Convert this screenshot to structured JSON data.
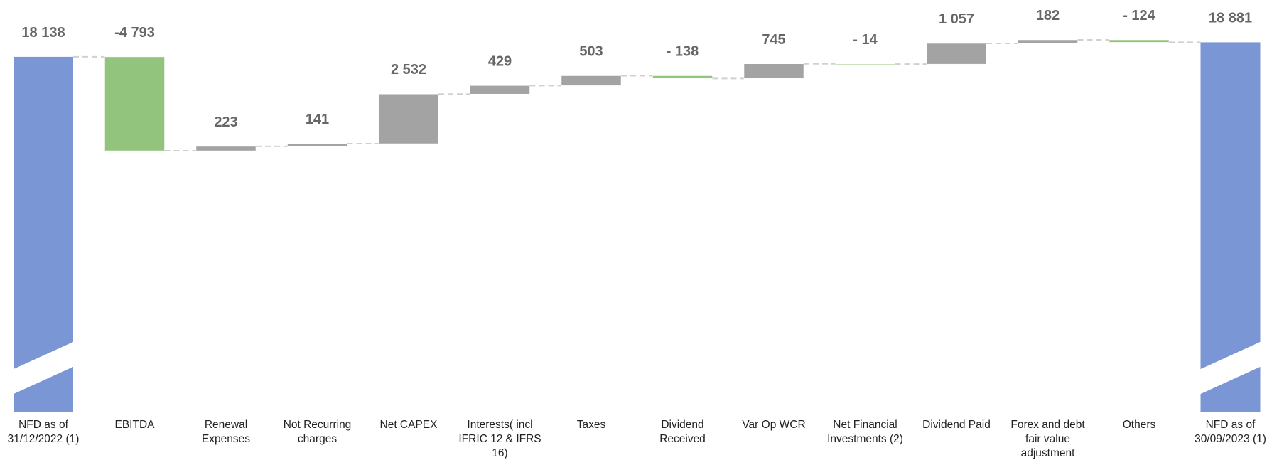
{
  "chart_data": {
    "type": "waterfall",
    "categories": [
      "NFD as of 31/12/2022 (1)",
      "EBITDA",
      "Renewal Expenses",
      "Not Recurring charges",
      "Net CAPEX",
      "Interests( incl IFRIC 12 & IFRS 16)",
      "Taxes",
      "Dividend Received",
      "Var Op WCR",
      "Net Financial Investments (2)",
      "Dividend Paid",
      "Forex and debt fair value adjustment",
      "Others",
      "NFD as of 30/09/2023 (1)"
    ],
    "values": [
      18138,
      -4793,
      223,
      141,
      2532,
      429,
      503,
      -138,
      745,
      -14,
      1057,
      182,
      -124,
      18881
    ],
    "value_labels": [
      "18 138",
      "-4 793",
      "223",
      "141",
      "2 532",
      "429",
      "503",
      "- 138",
      "745",
      "- 14",
      "1 057",
      "182",
      "- 124",
      "18 881"
    ],
    "is_total": [
      true,
      false,
      false,
      false,
      false,
      false,
      false,
      false,
      false,
      false,
      false,
      false,
      false,
      true
    ],
    "colors": {
      "total": "#7b96d4",
      "increase": "#a3a3a3",
      "decrease": "#93c47d"
    }
  }
}
